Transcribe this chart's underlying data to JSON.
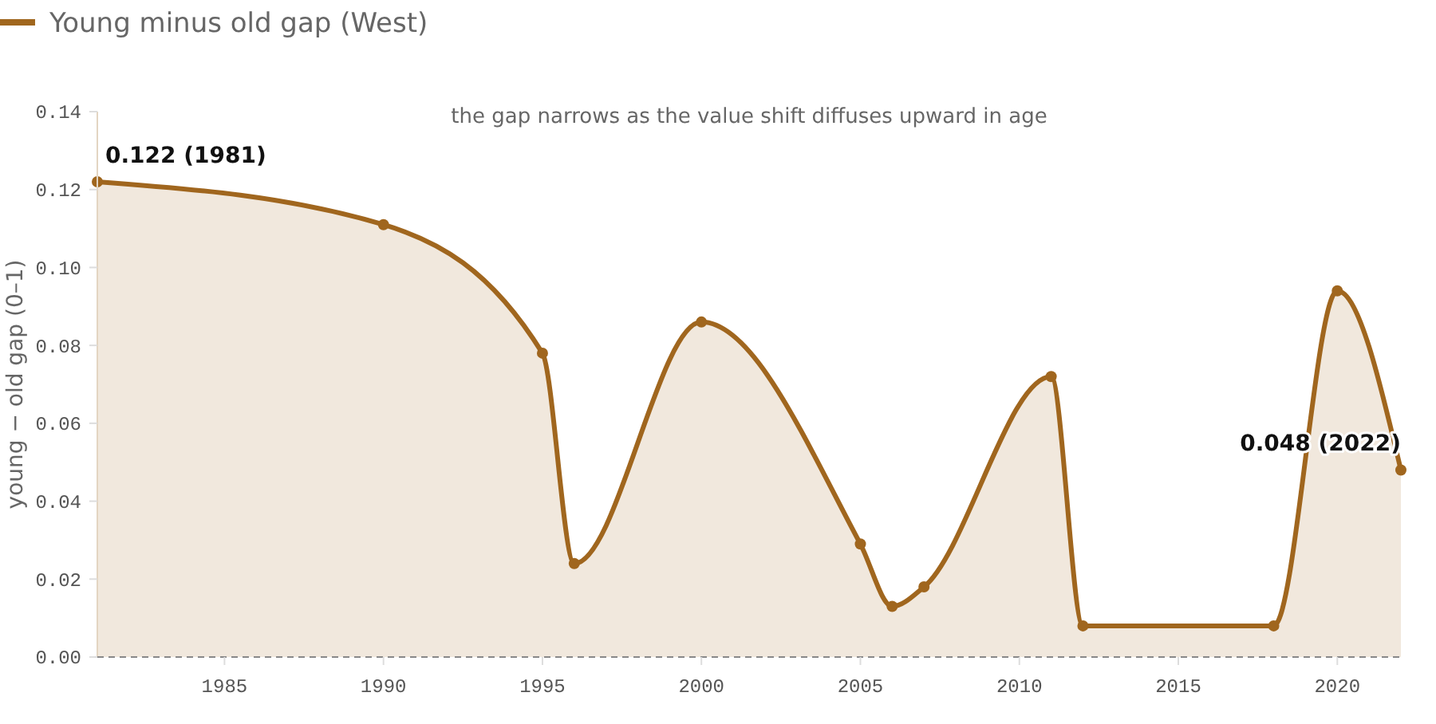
{
  "chart_data": {
    "type": "area",
    "ylabel": "young − old gap (0–1)",
    "x": [
      1981,
      1990,
      1995,
      1996,
      2000,
      2005,
      2006,
      2007,
      2011,
      2012,
      2018,
      2020,
      2022
    ],
    "series": [
      {
        "name": "Young minus old gap (West)",
        "color": "#a0661e",
        "values": [
          0.122,
          0.111,
          0.078,
          0.024,
          0.086,
          0.029,
          0.013,
          0.018,
          0.072,
          0.008,
          0.008,
          0.094,
          0.048
        ]
      }
    ],
    "xlim": [
      1981,
      2022
    ],
    "xticks": [
      1985,
      1990,
      1995,
      2000,
      2005,
      2010,
      2015,
      2020
    ],
    "ylim": [
      0,
      0.14
    ],
    "yticks": [
      {
        "value": 0,
        "label": "0.00"
      },
      {
        "value": 0.02,
        "label": "0.02"
      },
      {
        "value": 0.04,
        "label": "0.04"
      },
      {
        "value": 0.06,
        "label": "0.06"
      },
      {
        "value": 0.08,
        "label": "0.08"
      },
      {
        "value": 0.1,
        "label": "0.10"
      },
      {
        "value": 0.12,
        "label": "0.12"
      },
      {
        "value": 0.14,
        "label": "0.14"
      }
    ],
    "annotations": [
      "the gap narrows as the value shift diffuses upward in age",
      {
        "text": "0.122 (1981)",
        "x": 1981,
        "y": 0.122
      },
      {
        "text": "0.048 (2022)",
        "x": 2022,
        "y": 0.048
      }
    ],
    "legend": "top left",
    "marker": "circle",
    "line_style": "solid",
    "grid": false
  }
}
